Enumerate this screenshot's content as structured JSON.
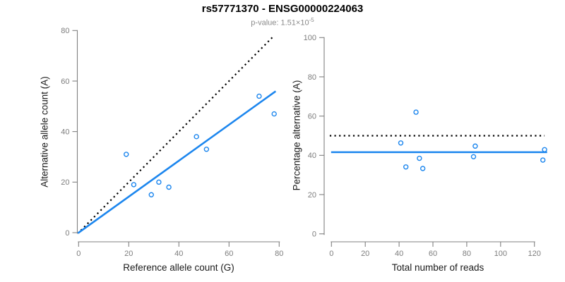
{
  "header": {
    "title": "rs57771370 - ENSG00000224063",
    "pvalue_prefix": "p-value: 1.51×10",
    "pvalue_exponent": "-5"
  },
  "colors": {
    "accent_blue": "#1C86EE",
    "axis_gray": "#808080",
    "tick_label_gray": "#7d7d7d",
    "identity_line_black": "#000000"
  },
  "chart_data": [
    {
      "type": "scatter",
      "xlabel": "Reference allele count (G)",
      "ylabel": "Alternative allele count (A)",
      "xlim": [
        0,
        80
      ],
      "ylim": [
        0,
        80
      ],
      "xticks": [
        0,
        20,
        40,
        60,
        80
      ],
      "yticks": [
        0,
        20,
        40,
        60,
        80
      ],
      "grid": false,
      "points": [
        [
          19,
          31
        ],
        [
          22,
          19
        ],
        [
          29,
          15
        ],
        [
          32,
          20
        ],
        [
          36,
          18
        ],
        [
          47,
          38
        ],
        [
          51,
          33
        ],
        [
          72,
          54
        ],
        [
          78,
          47
        ]
      ],
      "lines": [
        {
          "name": "identity-line",
          "style": "dotted",
          "slope": 1,
          "intercept": 0,
          "x_range": [
            0.9,
            77.3
          ]
        },
        {
          "name": "regression-line",
          "style": "solid",
          "slope": 0.712,
          "intercept": 0,
          "x_range": [
            -0.3,
            78.6
          ]
        }
      ]
    },
    {
      "type": "scatter",
      "xlabel": "Total number of reads",
      "ylabel": "Percentage alternative (A)",
      "xlim": [
        0,
        120
      ],
      "ylim": [
        0,
        100
      ],
      "xticks": [
        0,
        20,
        40,
        60,
        80,
        100,
        120
      ],
      "yticks": [
        0,
        20,
        40,
        60,
        80,
        100
      ],
      "grid": false,
      "points": [
        [
          50,
          62
        ],
        [
          41,
          46.3
        ],
        [
          44,
          34.1
        ],
        [
          52,
          38.5
        ],
        [
          54,
          33.3
        ],
        [
          85,
          44.7
        ],
        [
          84,
          39.3
        ],
        [
          126,
          42.9
        ],
        [
          125,
          37.6
        ]
      ],
      "lines": [
        {
          "name": "identity-line",
          "style": "dotted",
          "slope": 0,
          "intercept": 50,
          "x_range": [
            -1,
            126
          ]
        },
        {
          "name": "regression-line",
          "style": "solid",
          "slope": 0,
          "intercept": 41.6,
          "x_range": [
            -0.2,
            127.5
          ]
        }
      ]
    }
  ]
}
